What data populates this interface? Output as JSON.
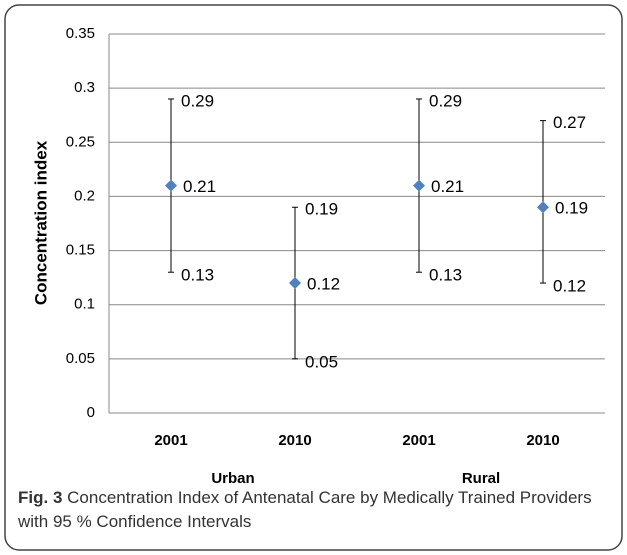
{
  "chart_data": {
    "type": "errorbar",
    "ylabel": "Concentration index",
    "categories": [
      "2001",
      "2010",
      "2001",
      "2010"
    ],
    "groups": [
      "Urban",
      "Rural"
    ],
    "values": [
      0.21,
      0.12,
      0.21,
      0.19
    ],
    "upper": [
      0.29,
      0.19,
      0.29,
      0.27
    ],
    "lower": [
      0.13,
      0.05,
      0.13,
      0.12
    ],
    "color": "#4f81bd",
    "ylim": [
      0,
      0.35
    ],
    "yticks": [
      0,
      0.05,
      0.1,
      0.15,
      0.2,
      0.25,
      0.3,
      0.35
    ],
    "grid": true
  },
  "caption": {
    "label": "Fig. 3",
    "text": "Concentration Index of Antenatal Care by Medically Trained Providers with 95 % Confidence Intervals"
  }
}
